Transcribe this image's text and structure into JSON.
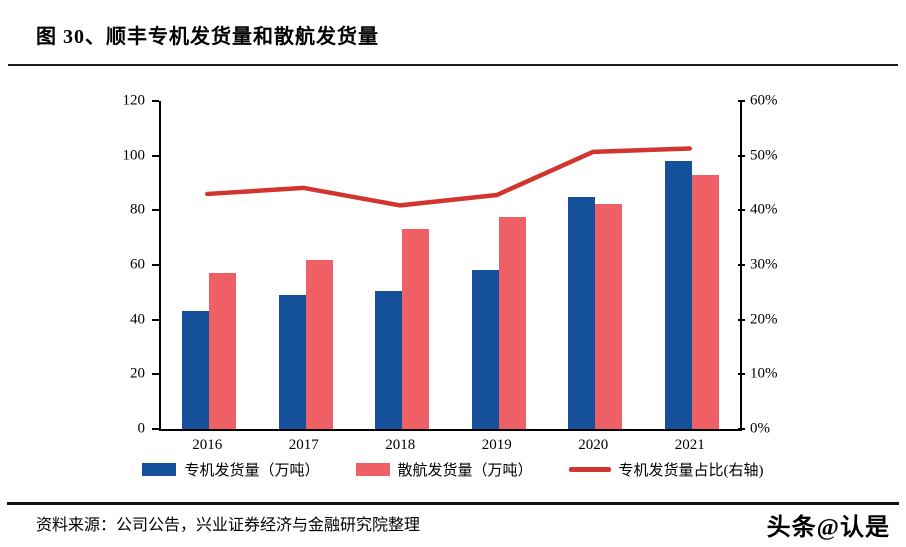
{
  "figure": {
    "title": "图 30、顺丰专机发货量和散航发货量",
    "source": "资料来源：公司公告，兴业证券经济与金融研究院整理",
    "watermark": "头条@认是"
  },
  "colors": {
    "bar_special_plane": "#15509B",
    "bar_scattered_air": "#EE6065",
    "line_ratio": "#D23530",
    "axis": "#000000"
  },
  "chart_data": {
    "type": "bar",
    "subtype": "grouped-bar-with-line",
    "title": "图 30、顺丰专机发货量和散航发货量",
    "categories": [
      "2016",
      "2017",
      "2018",
      "2019",
      "2020",
      "2021"
    ],
    "series": [
      {
        "name": "专机发货量（万吨）",
        "type": "bar",
        "yaxis": "left",
        "color": "#15509B",
        "values": [
          43,
          49,
          50.5,
          58,
          85,
          98
        ]
      },
      {
        "name": "散航发货量（万吨）",
        "type": "bar",
        "yaxis": "left",
        "color": "#EE6065",
        "values": [
          57,
          62,
          73,
          77.5,
          82.5,
          93
        ]
      },
      {
        "name": "专机发货量占比(右轴)",
        "type": "line",
        "yaxis": "right",
        "color": "#D23530",
        "values": [
          43.0,
          44.1,
          40.9,
          42.8,
          50.7,
          51.3
        ]
      }
    ],
    "left_axis": {
      "min": 0,
      "max": 120,
      "step": 20,
      "ticks": [
        "0",
        "20",
        "40",
        "60",
        "80",
        "100",
        "120"
      ]
    },
    "right_axis": {
      "min": 0,
      "max": 60,
      "step": 10,
      "format": "percent",
      "ticks": [
        "0%",
        "10%",
        "20%",
        "30%",
        "40%",
        "50%",
        "60%"
      ]
    },
    "xlabel": "",
    "ylabel": "",
    "legend_position": "bottom",
    "grid": false
  }
}
